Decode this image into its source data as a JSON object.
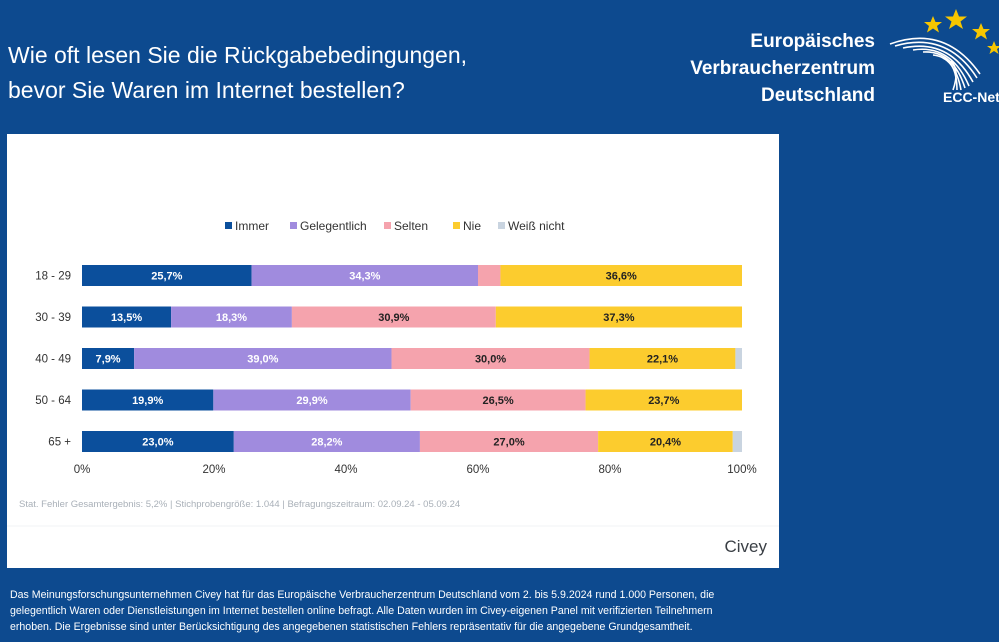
{
  "header": {
    "title_line1": "Wie oft lesen Sie die Rückgabebedingungen,",
    "title_line2": "bevor Sie Waren im Internet bestellen?",
    "brand_line1": "Europäisches",
    "brand_line2": "Verbraucherzentrum",
    "brand_line3": "Deutschland",
    "logo_text": "ECC-Net"
  },
  "chart_data": {
    "type": "bar",
    "orientation": "horizontal",
    "stacked": true,
    "categories": [
      "18 - 29",
      "30 - 39",
      "40 - 49",
      "50 - 64",
      "65 +"
    ],
    "series": [
      {
        "name": "Immer",
        "color": "#0b4f9c",
        "values": [
          25.7,
          13.5,
          7.9,
          19.9,
          23.0
        ],
        "labels": [
          "25,7%",
          "13,5%",
          "7,9%",
          "19,9%",
          "23,0%"
        ]
      },
      {
        "name": "Gelegentlich",
        "color": "#a08bde",
        "values": [
          34.3,
          18.3,
          39.0,
          29.9,
          28.2
        ],
        "labels": [
          "34,3%",
          "18,3%",
          "39,0%",
          "29,9%",
          "28,2%"
        ]
      },
      {
        "name": "Selten",
        "color": "#f5a3ad",
        "values": [
          3.4,
          30.9,
          30.0,
          26.5,
          27.0
        ],
        "labels": [
          "",
          "30,9%",
          "30,0%",
          "26,5%",
          "27,0%"
        ]
      },
      {
        "name": "Nie",
        "color": "#fccc2e",
        "values": [
          36.6,
          37.3,
          22.1,
          23.7,
          20.4
        ],
        "labels": [
          "36,6%",
          "37,3%",
          "22,1%",
          "23,7%",
          "20,4%"
        ]
      },
      {
        "name": "Weiß nicht",
        "color": "#c9d4e0",
        "values": [
          0.0,
          0.0,
          1.0,
          0.0,
          1.4
        ],
        "labels": [
          "",
          "",
          "",
          "",
          ""
        ]
      }
    ],
    "xlim": [
      0,
      100
    ],
    "xticks": [
      "0%",
      "20%",
      "40%",
      "60%",
      "80%",
      "100%"
    ],
    "legend_position": "top",
    "grid": false
  },
  "chart_footer": {
    "stats": "Stat. Fehler Gesamtergebnis: 5,2% | Stichprobengröße: 1.044 | Befragungszeitraum: 02.09.24 - 05.09.24",
    "source_brand": "Civey"
  },
  "footnote": {
    "line1": "Das Meinungsforschungsunternehmen Civey hat für das Europäische Verbraucherzentrum Deutschland vom 2. bis 5.9.2024 rund 1.000 Personen, die",
    "line2": "gelegentlich Waren oder Dienstleistungen im Internet bestellen online befragt. Alle Daten wurden im Civey-eigenen Panel mit verifizierten Teilnehmern",
    "line3": "erhoben. Die Ergebnisse sind unter Berücksichtigung des angegebenen statistischen Fehlers repräsentativ für die angegebene Grundgesamtheit."
  }
}
